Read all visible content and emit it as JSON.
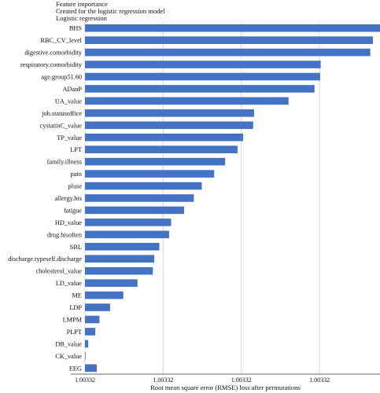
{
  "header": {
    "title": "Feature importance",
    "subtitle": "Created for the logistic regression model",
    "caption": "Logistic regression"
  },
  "chart_data": {
    "type": "bar",
    "orientation": "horizontal",
    "categories": [
      "BHS",
      "RBC_CV_level",
      "digestive.comorbidity",
      "respiratory.comorbidity",
      "age.group51.60",
      "ADanP",
      "UA_value",
      "job.statusoffice",
      "cystatinC_value",
      "TP_value",
      "LPT",
      "family.illness",
      "pain",
      "pluse",
      "allergy.his",
      "fatigue",
      "HD_value",
      "drug.hisoften",
      "SBL",
      "discharge.typeself.discharge",
      "cholesterol_value",
      "LD_value",
      "ME",
      "LDP",
      "LMPM",
      "PLPT",
      "DB_value",
      "CK_value",
      "EEG"
    ],
    "values": [
      100.0,
      97.6,
      96.7,
      79.9,
      79.7,
      77.8,
      69.0,
      57.3,
      57.0,
      53.6,
      51.7,
      47.5,
      43.8,
      39.6,
      36.9,
      33.6,
      29.2,
      28.5,
      25.2,
      23.5,
      23.0,
      17.8,
      13.0,
      8.5,
      4.9,
      3.5,
      1.1,
      0.2,
      4.0
    ],
    "value_unit": "relative to longest bar = 100",
    "xlabel": "Root mean square error (RMSE) loss after permutations",
    "ylabel": "",
    "xticks": [
      {
        "label": "1.00332",
        "value": 0
      },
      {
        "label": "1.00332",
        "value": 26.5
      },
      {
        "label": "1.00332",
        "value": 53
      },
      {
        "label": "1.00332",
        "value": 79.5
      }
    ],
    "xlim": [
      0,
      100
    ],
    "grid": true,
    "legend": "none",
    "colors": {
      "bar": "#4472c4",
      "grid": "#d9d9d9",
      "axis": "#333333",
      "text": "#111111"
    }
  }
}
